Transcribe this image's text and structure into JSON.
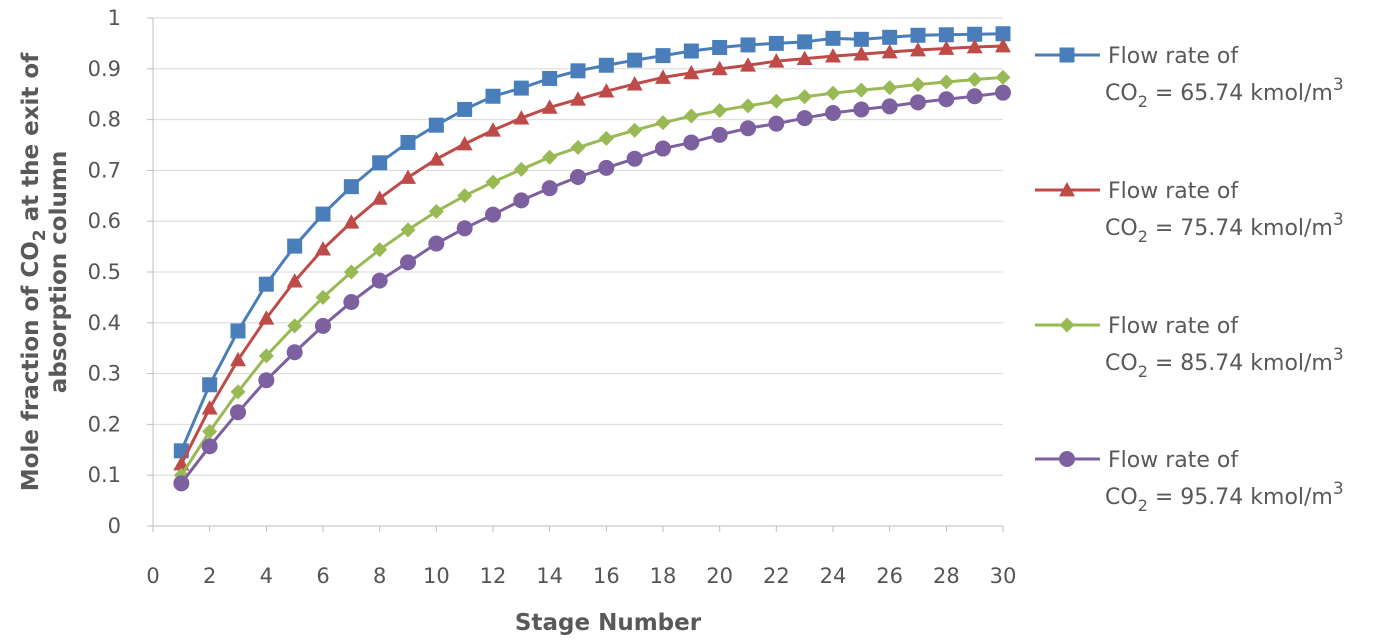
{
  "chart_data": {
    "type": "line",
    "title": "",
    "xlabel": "Stage Number",
    "ylabel_parts": [
      "Mole fraction of CO",
      "2",
      " at the exit of",
      "absorption column"
    ],
    "xlim": [
      0,
      30
    ],
    "ylim": [
      0,
      1
    ],
    "xticks": [
      0,
      2,
      4,
      6,
      8,
      10,
      12,
      14,
      16,
      18,
      20,
      22,
      24,
      26,
      28,
      30
    ],
    "yticks": [
      0,
      0.1,
      0.2,
      0.3,
      0.4,
      0.5,
      0.6,
      0.7,
      0.8,
      0.9,
      1
    ],
    "grid": "horizontal",
    "legend_position": "right",
    "x": [
      1,
      2,
      3,
      4,
      5,
      6,
      7,
      8,
      9,
      10,
      11,
      12,
      13,
      14,
      15,
      16,
      17,
      18,
      19,
      20,
      21,
      22,
      23,
      24,
      25,
      26,
      27,
      28,
      29,
      30
    ],
    "series": [
      {
        "name_line1": "Flow rate of",
        "name_line2": [
          "CO",
          "2",
          " = 65.74 kmol/m",
          "3"
        ],
        "color": "#4a7ebb",
        "marker": "square",
        "values": [
          0.148,
          0.278,
          0.384,
          0.476,
          0.551,
          0.614,
          0.668,
          0.715,
          0.755,
          0.789,
          0.82,
          0.846,
          0.862,
          0.881,
          0.896,
          0.907,
          0.917,
          0.926,
          0.935,
          0.942,
          0.947,
          0.95,
          0.953,
          0.96,
          0.958,
          0.962,
          0.966,
          0.967,
          0.968,
          0.969
        ]
      },
      {
        "name_line1": "Flow rate of",
        "name_line2": [
          "CO",
          "2",
          " = 75.74 kmol/m",
          "3"
        ],
        "color": "#be4b48",
        "marker": "triangle",
        "values": [
          0.122,
          0.232,
          0.327,
          0.409,
          0.482,
          0.545,
          0.598,
          0.645,
          0.686,
          0.722,
          0.752,
          0.779,
          0.803,
          0.824,
          0.84,
          0.856,
          0.87,
          0.883,
          0.892,
          0.9,
          0.907,
          0.915,
          0.92,
          0.925,
          0.929,
          0.933,
          0.937,
          0.94,
          0.943,
          0.945
        ]
      },
      {
        "name_line1": "Flow rate of",
        "name_line2": [
          "CO",
          "2",
          " = 85.74 kmol/m",
          "3"
        ],
        "color": "#98b954",
        "marker": "diamond",
        "values": [
          0.1,
          0.186,
          0.264,
          0.335,
          0.394,
          0.45,
          0.5,
          0.544,
          0.583,
          0.619,
          0.65,
          0.677,
          0.702,
          0.726,
          0.745,
          0.763,
          0.779,
          0.794,
          0.807,
          0.818,
          0.827,
          0.836,
          0.845,
          0.852,
          0.858,
          0.863,
          0.869,
          0.874,
          0.879,
          0.883
        ]
      },
      {
        "name_line1": "Flow rate of",
        "name_line2": [
          "CO",
          "2",
          " = 95.74 kmol/m",
          "3"
        ],
        "color": "#7d60a0",
        "marker": "circle",
        "values": [
          0.084,
          0.157,
          0.224,
          0.287,
          0.342,
          0.394,
          0.441,
          0.483,
          0.519,
          0.556,
          0.586,
          0.613,
          0.641,
          0.665,
          0.687,
          0.705,
          0.723,
          0.743,
          0.755,
          0.77,
          0.783,
          0.792,
          0.803,
          0.813,
          0.82,
          0.826,
          0.834,
          0.84,
          0.846,
          0.853
        ]
      }
    ]
  }
}
